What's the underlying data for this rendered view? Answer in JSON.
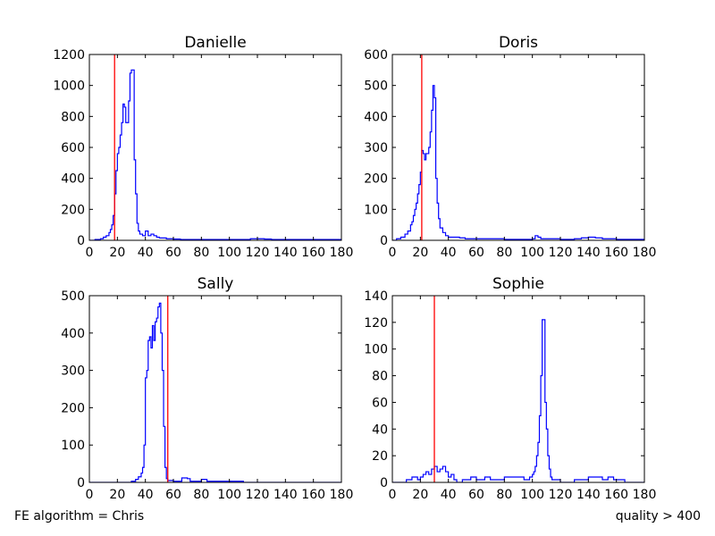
{
  "footer": {
    "left": "FE algorithm = Chris",
    "right": "quality > 400"
  },
  "colors": {
    "histogram": "#0000ff",
    "threshold_line": "#ff0000",
    "axes": "#000000"
  },
  "chart_data": [
    {
      "type": "histogram",
      "title": "Danielle",
      "xlim": [
        0,
        180
      ],
      "ylim": [
        0,
        1200
      ],
      "xticks": [
        0,
        20,
        40,
        60,
        80,
        100,
        120,
        140,
        160,
        180
      ],
      "yticks": [
        0,
        200,
        400,
        600,
        800,
        1000,
        1200
      ],
      "threshold": 18,
      "bin_width": 1,
      "points": [
        [
          0,
          0
        ],
        [
          4,
          5
        ],
        [
          8,
          10
        ],
        [
          10,
          20
        ],
        [
          12,
          30
        ],
        [
          14,
          50
        ],
        [
          15,
          70
        ],
        [
          16,
          100
        ],
        [
          17,
          160
        ],
        [
          18,
          300
        ],
        [
          19,
          450
        ],
        [
          20,
          560
        ],
        [
          21,
          600
        ],
        [
          22,
          680
        ],
        [
          23,
          760
        ],
        [
          24,
          880
        ],
        [
          25,
          860
        ],
        [
          26,
          760
        ],
        [
          27,
          760
        ],
        [
          28,
          900
        ],
        [
          29,
          1080
        ],
        [
          30,
          1100
        ],
        [
          31,
          1100
        ],
        [
          32,
          520
        ],
        [
          33,
          300
        ],
        [
          34,
          110
        ],
        [
          35,
          60
        ],
        [
          36,
          40
        ],
        [
          38,
          30
        ],
        [
          40,
          60
        ],
        [
          42,
          30
        ],
        [
          44,
          40
        ],
        [
          46,
          30
        ],
        [
          48,
          20
        ],
        [
          50,
          15
        ],
        [
          55,
          10
        ],
        [
          60,
          8
        ],
        [
          65,
          5
        ],
        [
          70,
          5
        ],
        [
          80,
          5
        ],
        [
          90,
          5
        ],
        [
          100,
          5
        ],
        [
          110,
          5
        ],
        [
          115,
          10
        ],
        [
          120,
          10
        ],
        [
          125,
          8
        ],
        [
          130,
          5
        ],
        [
          140,
          5
        ],
        [
          160,
          5
        ],
        [
          175,
          5
        ],
        [
          180,
          0
        ]
      ]
    },
    {
      "type": "histogram",
      "title": "Doris",
      "xlim": [
        0,
        180
      ],
      "ylim": [
        0,
        600
      ],
      "xticks": [
        0,
        20,
        40,
        60,
        80,
        100,
        120,
        140,
        160,
        180
      ],
      "yticks": [
        0,
        100,
        200,
        300,
        400,
        500,
        600
      ],
      "threshold": 21,
      "bin_width": 1,
      "points": [
        [
          0,
          0
        ],
        [
          3,
          5
        ],
        [
          6,
          10
        ],
        [
          9,
          20
        ],
        [
          11,
          30
        ],
        [
          13,
          50
        ],
        [
          14,
          60
        ],
        [
          15,
          80
        ],
        [
          16,
          100
        ],
        [
          17,
          120
        ],
        [
          18,
          150
        ],
        [
          19,
          180
        ],
        [
          20,
          220
        ],
        [
          21,
          290
        ],
        [
          22,
          280
        ],
        [
          23,
          260
        ],
        [
          24,
          280
        ],
        [
          25,
          280
        ],
        [
          26,
          300
        ],
        [
          27,
          350
        ],
        [
          28,
          420
        ],
        [
          29,
          500
        ],
        [
          30,
          460
        ],
        [
          31,
          200
        ],
        [
          32,
          120
        ],
        [
          33,
          70
        ],
        [
          34,
          40
        ],
        [
          36,
          25
        ],
        [
          38,
          15
        ],
        [
          40,
          10
        ],
        [
          44,
          10
        ],
        [
          48,
          8
        ],
        [
          52,
          5
        ],
        [
          60,
          5
        ],
        [
          80,
          3
        ],
        [
          100,
          5
        ],
        [
          102,
          15
        ],
        [
          104,
          10
        ],
        [
          106,
          5
        ],
        [
          120,
          3
        ],
        [
          130,
          5
        ],
        [
          135,
          8
        ],
        [
          140,
          10
        ],
        [
          145,
          8
        ],
        [
          150,
          5
        ],
        [
          160,
          3
        ],
        [
          170,
          3
        ],
        [
          180,
          0
        ]
      ]
    },
    {
      "type": "histogram",
      "title": "Sally",
      "xlim": [
        0,
        180
      ],
      "ylim": [
        0,
        500
      ],
      "xticks": [
        0,
        20,
        40,
        60,
        80,
        100,
        120,
        140,
        160,
        180
      ],
      "yticks": [
        0,
        100,
        200,
        300,
        400,
        500
      ],
      "threshold": 56,
      "bin_width": 1,
      "points": [
        [
          0,
          0
        ],
        [
          20,
          0
        ],
        [
          30,
          3
        ],
        [
          33,
          8
        ],
        [
          35,
          15
        ],
        [
          37,
          25
        ],
        [
          38,
          40
        ],
        [
          39,
          100
        ],
        [
          40,
          280
        ],
        [
          41,
          300
        ],
        [
          42,
          380
        ],
        [
          43,
          390
        ],
        [
          44,
          360
        ],
        [
          45,
          420
        ],
        [
          46,
          380
        ],
        [
          47,
          430
        ],
        [
          48,
          440
        ],
        [
          49,
          470
        ],
        [
          50,
          480
        ],
        [
          51,
          400
        ],
        [
          52,
          300
        ],
        [
          53,
          150
        ],
        [
          54,
          40
        ],
        [
          55,
          10
        ],
        [
          56,
          5
        ],
        [
          60,
          3
        ],
        [
          64,
          3
        ],
        [
          66,
          12
        ],
        [
          70,
          10
        ],
        [
          72,
          3
        ],
        [
          76,
          3
        ],
        [
          80,
          8
        ],
        [
          84,
          3
        ],
        [
          90,
          3
        ],
        [
          105,
          3
        ],
        [
          110,
          0
        ],
        [
          180,
          0
        ]
      ]
    },
    {
      "type": "histogram",
      "title": "Sophie",
      "xlim": [
        0,
        180
      ],
      "ylim": [
        0,
        140
      ],
      "xticks": [
        0,
        20,
        40,
        60,
        80,
        100,
        120,
        140,
        160,
        180
      ],
      "yticks": [
        0,
        20,
        40,
        60,
        80,
        100,
        120,
        140
      ],
      "threshold": 30,
      "bin_width": 1,
      "points": [
        [
          0,
          0
        ],
        [
          10,
          2
        ],
        [
          14,
          4
        ],
        [
          18,
          2
        ],
        [
          20,
          4
        ],
        [
          22,
          6
        ],
        [
          24,
          8
        ],
        [
          26,
          6
        ],
        [
          28,
          10
        ],
        [
          30,
          12
        ],
        [
          32,
          8
        ],
        [
          34,
          10
        ],
        [
          36,
          12
        ],
        [
          38,
          8
        ],
        [
          40,
          4
        ],
        [
          42,
          6
        ],
        [
          44,
          2
        ],
        [
          46,
          0
        ],
        [
          50,
          2
        ],
        [
          56,
          4
        ],
        [
          60,
          2
        ],
        [
          66,
          4
        ],
        [
          70,
          2
        ],
        [
          75,
          2
        ],
        [
          80,
          4
        ],
        [
          84,
          4
        ],
        [
          88,
          4
        ],
        [
          94,
          2
        ],
        [
          98,
          4
        ],
        [
          100,
          6
        ],
        [
          101,
          8
        ],
        [
          102,
          12
        ],
        [
          103,
          20
        ],
        [
          104,
          30
        ],
        [
          105,
          50
        ],
        [
          106,
          80
        ],
        [
          107,
          122
        ],
        [
          108,
          122
        ],
        [
          109,
          60
        ],
        [
          110,
          40
        ],
        [
          111,
          20
        ],
        [
          112,
          10
        ],
        [
          113,
          4
        ],
        [
          114,
          2
        ],
        [
          120,
          0
        ],
        [
          130,
          2
        ],
        [
          136,
          2
        ],
        [
          140,
          4
        ],
        [
          144,
          4
        ],
        [
          148,
          4
        ],
        [
          150,
          2
        ],
        [
          154,
          4
        ],
        [
          158,
          2
        ],
        [
          162,
          2
        ],
        [
          166,
          0
        ],
        [
          180,
          0
        ]
      ]
    }
  ]
}
